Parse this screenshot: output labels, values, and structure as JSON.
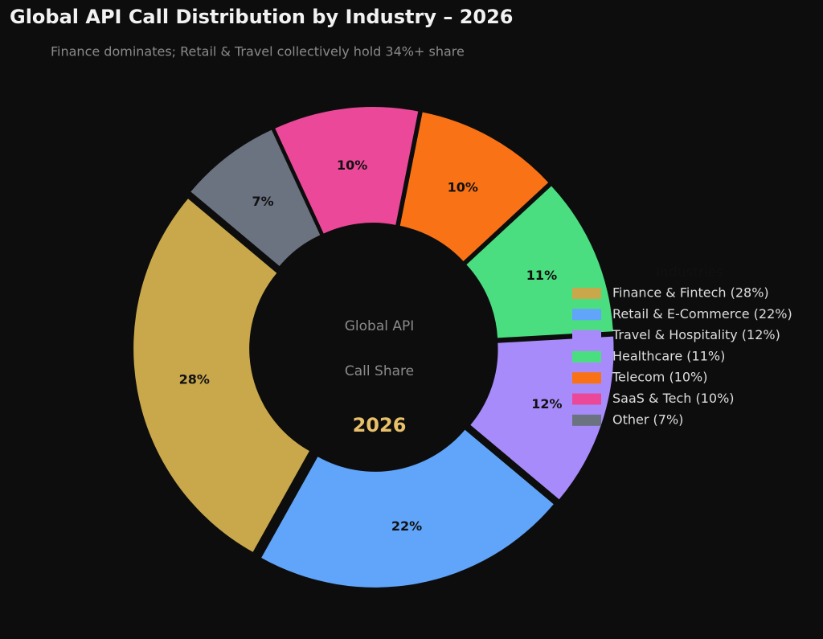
{
  "chart_data": {
    "type": "donut",
    "title": "Global API Call Distribution by Industry – 2026",
    "subtitle": "Finance dominates; Retail & Travel collectively hold 34%+ share",
    "categories": [
      "Finance & Fintech (28%)",
      "Retail & E-Commerce (22%)",
      "Travel & Hospitality (12%)",
      "Healthcare (11%)",
      "Telecom (10%)",
      "SaaS & Tech (10%)",
      "Other (7%)"
    ],
    "values": [
      28,
      22,
      12,
      11,
      10,
      10,
      7
    ],
    "value_labels": [
      "28%",
      "22%",
      "12%",
      "11%",
      "10%",
      "10%",
      "7%"
    ],
    "colors": [
      "#c9a84c",
      "#60a5fa",
      "#a78bfa",
      "#4ade80",
      "#f97316",
      "#ec4899",
      "#6b7280"
    ],
    "center_text": [
      "Global API",
      "Call Share"
    ],
    "center_year": "2026",
    "legend_title": "Industries",
    "legend_position": "right"
  }
}
